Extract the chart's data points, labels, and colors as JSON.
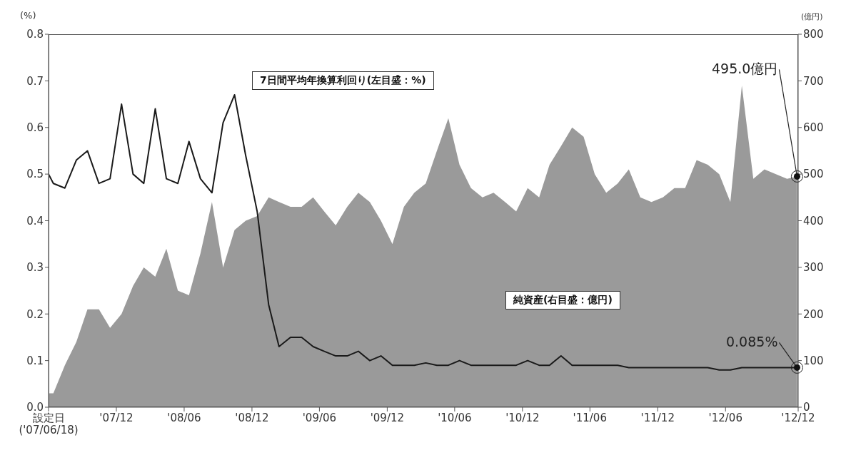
{
  "chart_data": {
    "type": "area",
    "ylabel": "(%)",
    "y2label": "(億円)",
    "x": [
      "2007-06-18",
      "2007-07-01",
      "2007-08-01",
      "2007-09-01",
      "2007-10-01",
      "2007-11-01",
      "2007-12-01",
      "2008-01-01",
      "2008-02-01",
      "2008-03-01",
      "2008-04-01",
      "2008-05-01",
      "2008-06-01",
      "2008-07-01",
      "2008-08-01",
      "2008-09-01",
      "2008-10-01",
      "2008-11-01",
      "2008-12-01",
      "2009-01-01",
      "2009-02-01",
      "2009-03-01",
      "2009-04-01",
      "2009-05-01",
      "2009-06-01",
      "2009-07-01",
      "2009-08-01",
      "2009-09-01",
      "2009-10-01",
      "2009-11-01",
      "2009-12-01",
      "2010-01-01",
      "2010-02-01",
      "2010-03-01",
      "2010-04-01",
      "2010-05-01",
      "2010-06-01",
      "2010-07-01",
      "2010-08-01",
      "2010-09-01",
      "2010-10-01",
      "2010-11-01",
      "2010-12-01",
      "2011-01-01",
      "2011-02-01",
      "2011-03-01",
      "2011-04-01",
      "2011-05-01",
      "2011-06-01",
      "2011-07-01",
      "2011-08-01",
      "2011-09-01",
      "2011-10-01",
      "2011-11-01",
      "2011-12-01",
      "2012-01-01",
      "2012-02-01",
      "2012-03-01",
      "2012-04-01",
      "2012-05-01",
      "2012-06-01",
      "2012-07-01",
      "2012-08-01",
      "2012-09-01",
      "2012-10-01",
      "2012-11-01",
      "2012-12-01",
      "2012-12-28"
    ],
    "series": [
      {
        "name": "純資産(右目盛：億円)",
        "axis": "y2",
        "color": "#9a9a9a",
        "values": [
          30,
          30,
          90,
          140,
          210,
          210,
          170,
          200,
          260,
          300,
          280,
          340,
          250,
          240,
          330,
          440,
          300,
          380,
          400,
          410,
          450,
          440,
          430,
          430,
          450,
          420,
          390,
          430,
          460,
          440,
          400,
          350,
          430,
          460,
          480,
          550,
          620,
          520,
          470,
          450,
          460,
          440,
          420,
          470,
          450,
          520,
          560,
          600,
          580,
          500,
          460,
          480,
          510,
          450,
          440,
          450,
          470,
          470,
          530,
          520,
          500,
          440,
          690,
          490,
          510,
          500,
          490,
          495.0
        ],
        "value_labels": [
          null,
          null,
          null,
          null,
          null,
          null,
          null,
          null,
          null,
          null,
          null,
          null,
          null,
          null,
          null,
          null,
          null,
          null,
          null,
          null,
          null,
          null,
          null,
          null,
          null,
          null,
          null,
          null,
          null,
          null,
          null,
          null,
          null,
          null,
          null,
          null,
          null,
          null,
          null,
          null,
          null,
          null,
          null,
          null,
          null,
          null,
          null,
          null,
          null,
          null,
          null,
          null,
          null,
          null,
          null,
          null,
          null,
          null,
          null,
          null,
          null,
          null,
          null,
          null,
          null,
          null,
          null,
          "495.0億円"
        ]
      },
      {
        "name": "7日間平均年換算利回り(左目盛：%)",
        "type": "line",
        "color": "#1a1a1a",
        "values": [
          0.5,
          0.48,
          0.47,
          0.53,
          0.55,
          0.48,
          0.49,
          0.65,
          0.5,
          0.48,
          0.64,
          0.49,
          0.48,
          0.57,
          0.49,
          0.46,
          0.61,
          0.67,
          0.54,
          0.42,
          0.22,
          0.13,
          0.15,
          0.15,
          0.13,
          0.12,
          0.11,
          0.11,
          0.12,
          0.1,
          0.11,
          0.09,
          0.09,
          0.09,
          0.095,
          0.09,
          0.09,
          0.1,
          0.09,
          0.09,
          0.09,
          0.09,
          0.09,
          0.1,
          0.09,
          0.09,
          0.11,
          0.09,
          0.09,
          0.09,
          0.09,
          0.09,
          0.085,
          0.085,
          0.085,
          0.085,
          0.085,
          0.085,
          0.085,
          0.085,
          0.08,
          0.08,
          0.085,
          0.085,
          0.085,
          0.085,
          0.085,
          0.085
        ],
        "value_labels": [
          null,
          null,
          null,
          null,
          null,
          null,
          null,
          null,
          null,
          null,
          null,
          null,
          null,
          null,
          null,
          null,
          null,
          null,
          null,
          null,
          null,
          null,
          null,
          null,
          null,
          null,
          null,
          null,
          null,
          null,
          null,
          null,
          null,
          null,
          null,
          null,
          null,
          null,
          null,
          null,
          null,
          null,
          null,
          null,
          null,
          null,
          null,
          null,
          null,
          null,
          null,
          null,
          null,
          null,
          null,
          null,
          null,
          null,
          null,
          null,
          null,
          null,
          null,
          null,
          null,
          null,
          null,
          "0.085%"
        ]
      }
    ],
    "xlim": [
      "2007-06-18",
      "2012-12-31"
    ],
    "xticks": [
      {
        "value": "2007-06-18",
        "label": "設定日\n('07/06/18)"
      },
      {
        "value": "2007-12-18",
        "label": "'07/12"
      },
      {
        "value": "2008-06-18",
        "label": "'08/06"
      },
      {
        "value": "2008-12-18",
        "label": "'08/12"
      },
      {
        "value": "2009-06-18",
        "label": "'09/06"
      },
      {
        "value": "2009-12-18",
        "label": "'09/12"
      },
      {
        "value": "2010-06-18",
        "label": "'10/06"
      },
      {
        "value": "2010-12-18",
        "label": "'10/12"
      },
      {
        "value": "2011-06-18",
        "label": "'11/06"
      },
      {
        "value": "2011-12-18",
        "label": "'11/12"
      },
      {
        "value": "2012-06-18",
        "label": "'12/06"
      },
      {
        "value": "2012-12-31",
        "label": "'12/12"
      }
    ],
    "ylim": [
      0,
      0.8
    ],
    "yticks": [
      {
        "value": 0,
        "label": "0.0"
      },
      {
        "value": 0.1,
        "label": "0.1"
      },
      {
        "value": 0.2,
        "label": "0.2"
      },
      {
        "value": 0.3,
        "label": "0.3"
      },
      {
        "value": 0.4,
        "label": "0.4"
      },
      {
        "value": 0.5,
        "label": "0.5"
      },
      {
        "value": 0.6,
        "label": "0.6"
      },
      {
        "value": 0.7,
        "label": "0.7"
      },
      {
        "value": 0.8,
        "label": "0.8"
      }
    ],
    "y2lim": [
      0,
      800
    ],
    "y2ticks": [
      0,
      100,
      200,
      300,
      400,
      500,
      600,
      700,
      800
    ],
    "grid": false,
    "legend": false,
    "marker": "none",
    "line_style": "solid"
  }
}
